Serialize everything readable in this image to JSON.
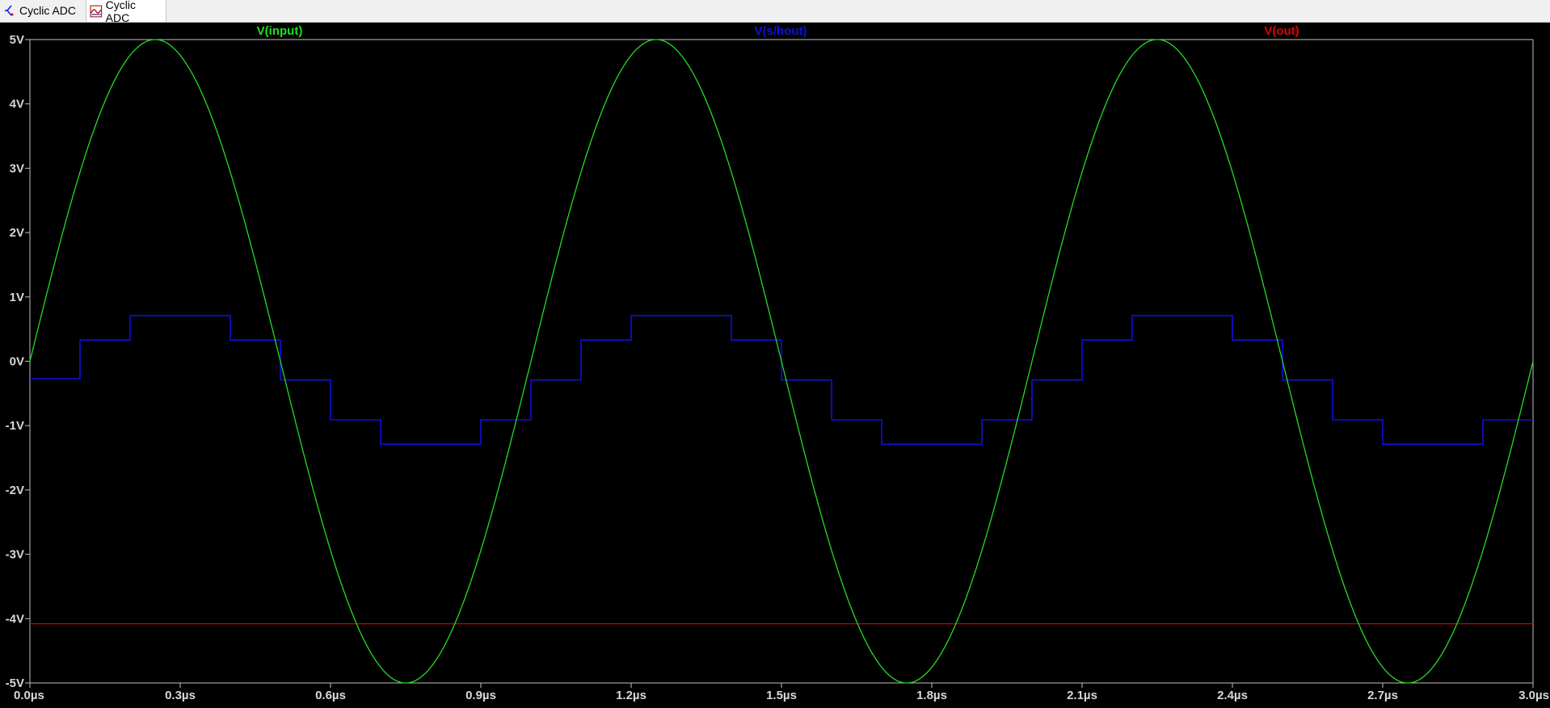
{
  "tabs": [
    {
      "label": "Cyclic ADC",
      "icon": "schematic-icon"
    },
    {
      "label": "Cyclic ADC",
      "icon": "waveform-icon"
    }
  ],
  "colors": {
    "background": "#000000",
    "axis": "#c0c0c0",
    "input": "#22dd22",
    "shout": "#1010e0",
    "out": "#e00000"
  },
  "chart_data": {
    "type": "line",
    "title": "",
    "xlabel": "",
    "ylabel": "",
    "xlim": [
      0,
      3.0
    ],
    "ylim": [
      -5,
      5
    ],
    "x_ticks": [
      {
        "value": 0.0,
        "label": "0.0µs"
      },
      {
        "value": 0.3,
        "label": "0.3µs"
      },
      {
        "value": 0.6,
        "label": "0.6µs"
      },
      {
        "value": 0.9,
        "label": "0.9µs"
      },
      {
        "value": 1.2,
        "label": "1.2µs"
      },
      {
        "value": 1.5,
        "label": "1.5µs"
      },
      {
        "value": 1.8,
        "label": "1.8µs"
      },
      {
        "value": 2.1,
        "label": "2.1µs"
      },
      {
        "value": 2.4,
        "label": "2.4µs"
      },
      {
        "value": 2.7,
        "label": "2.7µs"
      },
      {
        "value": 3.0,
        "label": "3.0µs"
      }
    ],
    "y_ticks": [
      {
        "value": 5,
        "label": "5V"
      },
      {
        "value": 4,
        "label": "4V"
      },
      {
        "value": 3,
        "label": "3V"
      },
      {
        "value": 2,
        "label": "2V"
      },
      {
        "value": 1,
        "label": "1V"
      },
      {
        "value": 0,
        "label": "0V"
      },
      {
        "value": -1,
        "label": "-1V"
      },
      {
        "value": -2,
        "label": "-2V"
      },
      {
        "value": -3,
        "label": "-3V"
      },
      {
        "value": -4,
        "label": "-4V"
      },
      {
        "value": -5,
        "label": "-5V"
      }
    ],
    "series": [
      {
        "name": "V(input)",
        "kind": "sine",
        "amplitude": 5,
        "period": 1.0,
        "x_range": [
          0,
          3.0
        ]
      },
      {
        "name": "V(s/hout)",
        "kind": "step",
        "x": [
          0.0,
          0.1,
          0.2,
          0.4,
          0.5,
          0.6,
          0.7,
          0.9,
          1.0,
          1.1,
          1.2,
          1.4,
          1.5,
          1.6,
          1.7,
          1.9,
          2.0,
          2.1,
          2.2,
          2.4,
          2.5,
          2.6,
          2.7,
          2.9,
          3.0
        ],
        "y": [
          -0.27,
          0.33,
          0.71,
          0.33,
          -0.29,
          -0.91,
          -1.29,
          -0.91,
          -0.29,
          0.33,
          0.71,
          0.33,
          -0.29,
          -0.91,
          -1.29,
          -0.91,
          -0.29,
          0.33,
          0.71,
          0.33,
          -0.29,
          -0.91,
          -1.29,
          -0.91,
          -0.91
        ]
      },
      {
        "name": "V(out)",
        "kind": "constant",
        "x": [
          0.0,
          3.0
        ],
        "y": [
          -4.08,
          -4.08
        ]
      }
    ],
    "legend_placement": "top"
  }
}
